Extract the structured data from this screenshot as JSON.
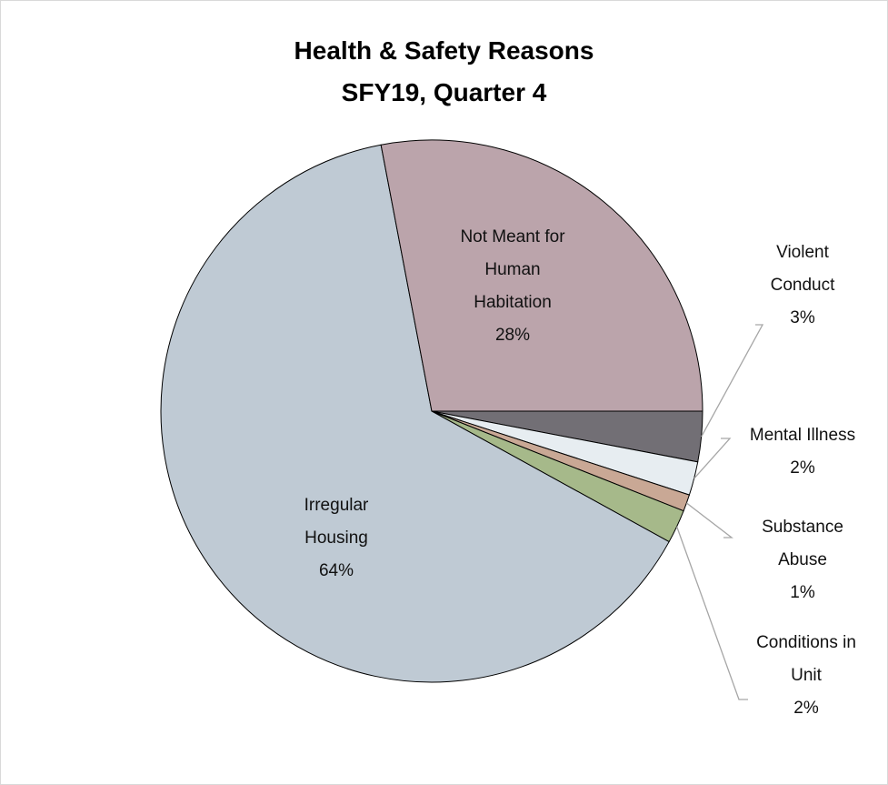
{
  "chart_data": {
    "type": "pie",
    "title_lines": [
      "Health & Safety Reasons",
      "SFY19, Quarter 4"
    ],
    "slices": [
      {
        "label": "Violent Conduct",
        "value": 3,
        "percent_label": "3%",
        "color": "#726f75"
      },
      {
        "label": "Mental Illness",
        "value": 2,
        "percent_label": "2%",
        "color": "#e7edf1"
      },
      {
        "label": "Substance Abuse",
        "value": 1,
        "percent_label": "1%",
        "color": "#c9a895"
      },
      {
        "label": "Conditions in Unit",
        "value": 2,
        "percent_label": "2%",
        "color": "#a6b98a"
      },
      {
        "label": "Irregular Housing",
        "value": 64,
        "percent_label": "64%",
        "color": "#bfcad4"
      },
      {
        "label": "Not Meant for Human Habitation",
        "value": 28,
        "percent_label": "28%",
        "color": "#bba4ab"
      }
    ],
    "start_direction": "3 o'clock, clockwise",
    "legend": "none",
    "data_labels": {
      "Violent Conduct": [
        "Violent",
        "Conduct",
        "3%"
      ],
      "Mental Illness": [
        "Mental Illness",
        "2%"
      ],
      "Substance Abuse": [
        "Substance",
        "Abuse",
        "1%"
      ],
      "Conditions in Unit": [
        "Conditions in",
        "Unit",
        "2%"
      ],
      "Irregular Housing": [
        "Irregular",
        "Housing",
        "64%"
      ],
      "Not Meant for Human Habitation": [
        "Not Meant for",
        "Human",
        "Habitation",
        "28%"
      ]
    }
  }
}
